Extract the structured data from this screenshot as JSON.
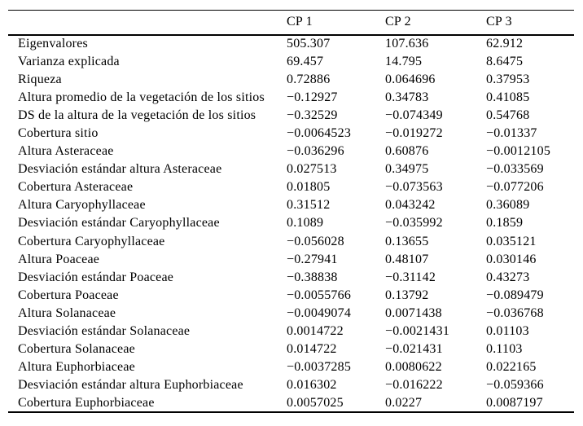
{
  "table": {
    "header": {
      "label": "",
      "cp1": "CP 1",
      "cp2": "CP 2",
      "cp3": "CP 3"
    },
    "rows": [
      {
        "label": "Eigenvalores",
        "cp1": "505.307",
        "cp2": "107.636",
        "cp3": "62.912"
      },
      {
        "label": "Varianza explicada",
        "cp1": "69.457",
        "cp2": "14.795",
        "cp3": "8.6475"
      },
      {
        "label": "Riqueza",
        "cp1": "0.72886",
        "cp2": "0.064696",
        "cp3": "0.37953"
      },
      {
        "label": "Altura promedio de la vegetación de los sitios",
        "cp1": "−0.12927",
        "cp2": "0.34783",
        "cp3": "0.41085"
      },
      {
        "label": "DS de la altura de la vegetación de los sitios",
        "cp1": "−0.32529",
        "cp2": "−0.074349",
        "cp3": "0.54768"
      },
      {
        "label": "Cobertura sitio",
        "cp1": "−0.0064523",
        "cp2": "−0.019272",
        "cp3": "−0.01337"
      },
      {
        "label": "Altura Asteraceae",
        "cp1": "−0.036296",
        "cp2": "0.60876",
        "cp3": "−0.0012105"
      },
      {
        "label": "Desviación estándar altura Asteraceae",
        "cp1": "0.027513",
        "cp2": "0.34975",
        "cp3": "−0.033569"
      },
      {
        "label": "Cobertura Asteraceae",
        "cp1": "0.01805",
        "cp2": "−0.073563",
        "cp3": "−0.077206"
      },
      {
        "label": "Altura Caryophyllaceae",
        "cp1": "0.31512",
        "cp2": "0.043242",
        "cp3": "0.36089"
      },
      {
        "label": "Desviación estándar Caryophyllaceae",
        "cp1": "0.1089",
        "cp2": "−0.035992",
        "cp3": "0.1859"
      },
      {
        "label": "Cobertura Caryophyllaceae",
        "cp1": "−0.056028",
        "cp2": "0.13655",
        "cp3": "0.035121"
      },
      {
        "label": "Altura Poaceae",
        "cp1": "−0.27941",
        "cp2": "0.48107",
        "cp3": "0.030146"
      },
      {
        "label": "Desviación estándar Poaceae",
        "cp1": "−0.38838",
        "cp2": "−0.31142",
        "cp3": "0.43273"
      },
      {
        "label": "Cobertura Poaceae",
        "cp1": "−0.0055766",
        "cp2": "0.13792",
        "cp3": "−0.089479"
      },
      {
        "label": "Altura Solanaceae",
        "cp1": "−0.0049074",
        "cp2": "0.0071438",
        "cp3": "−0.036768"
      },
      {
        "label": "Desviación estándar Solanaceae",
        "cp1": "0.0014722",
        "cp2": "−0.0021431",
        "cp3": "0.01103"
      },
      {
        "label": "Cobertura Solanaceae",
        "cp1": "0.014722",
        "cp2": "−0.021431",
        "cp3": "0.1103"
      },
      {
        "label": "Altura Euphorbiaceae",
        "cp1": "−0.0037285",
        "cp2": "0.0080622",
        "cp3": "0.022165"
      },
      {
        "label": "Desviación estándar altura Euphorbiaceae",
        "cp1": "0.016302",
        "cp2": "−0.016222",
        "cp3": "−0.059366"
      },
      {
        "label": "Cobertura Euphorbiaceae",
        "cp1": "0.0057025",
        "cp2": "0.0227",
        "cp3": "0.0087197"
      }
    ]
  }
}
